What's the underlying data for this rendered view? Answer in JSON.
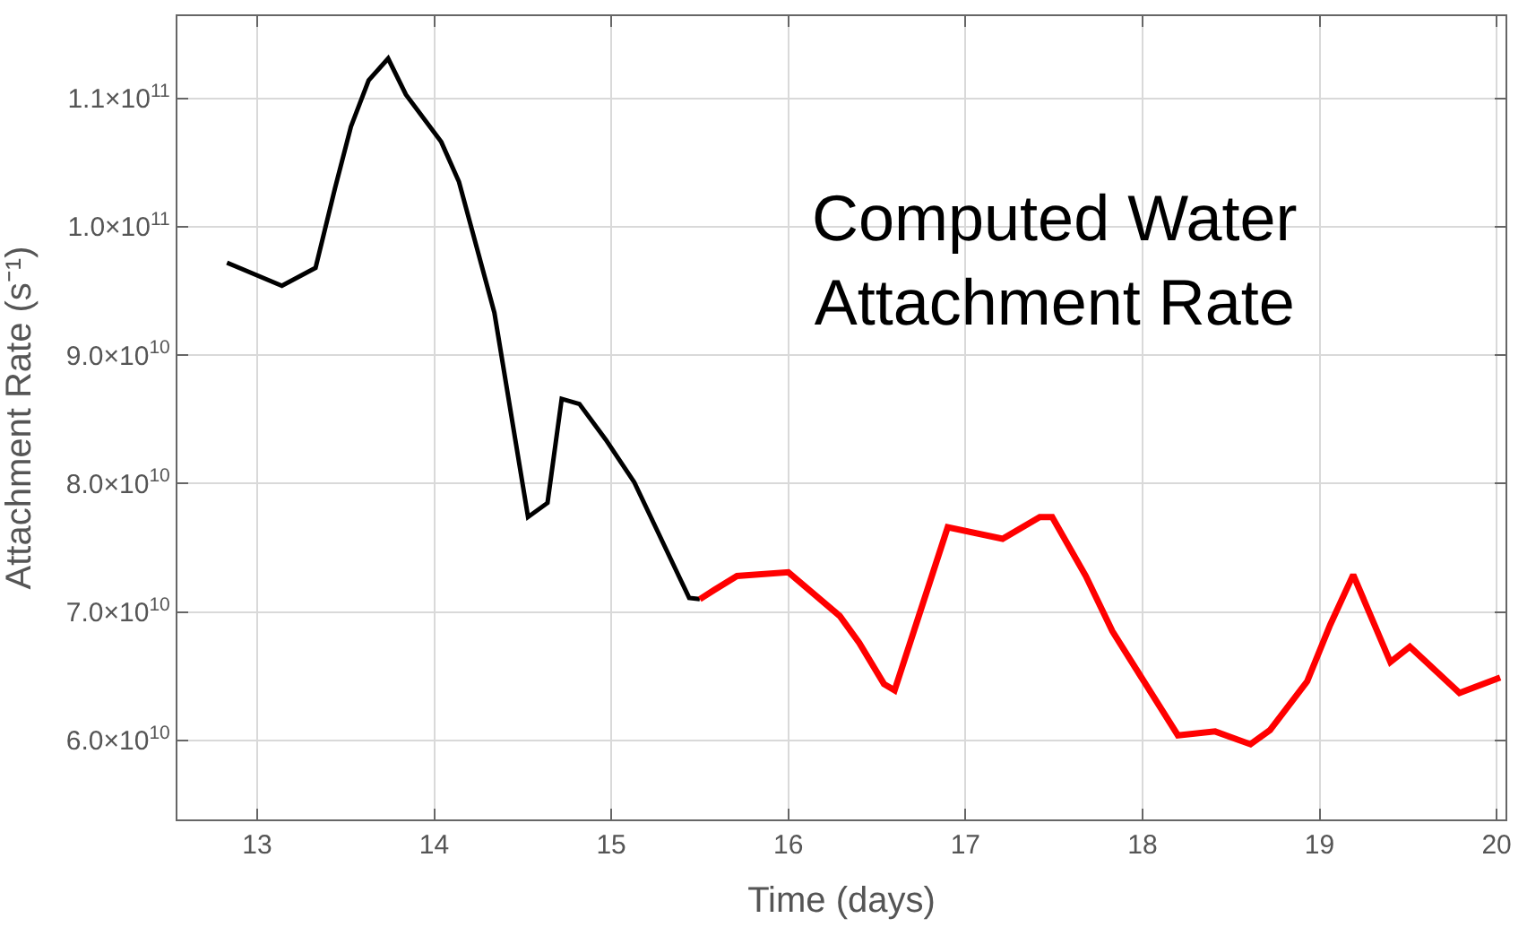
{
  "chart_data": {
    "type": "line",
    "xlabel": "Time (days)",
    "ylabel": "Attachment Rate (s⁻¹)",
    "annotations": [
      "Computed Water\nAttachment Rate"
    ],
    "series": [
      {
        "color": "#000000",
        "x": [
          12.83,
          13.14,
          13.33,
          13.44,
          13.53,
          13.63,
          13.74,
          13.84,
          14.04,
          14.14,
          14.34,
          14.53,
          14.64,
          14.72,
          14.82,
          14.97,
          15.13,
          15.44,
          15.5
        ],
        "values": [
          97200000000.0,
          95400000000.0,
          96800000000.0,
          103000000000.0,
          107800000000.0,
          111400000000.0,
          113100000000.0,
          110300000000.0,
          106600000000.0,
          103500000000.0,
          93300000000.0,
          77400000000.0,
          78500000000.0,
          86600000000.0,
          86200000000.0,
          83400000000.0,
          80100000000.0,
          71100000000.0,
          71000000000.0
        ]
      },
      {
        "color": "#ff0000",
        "x": [
          15.5,
          15.58,
          15.71,
          16.0,
          16.29,
          16.4,
          16.54,
          16.6,
          16.9,
          17.21,
          17.42,
          17.49,
          17.68,
          17.83,
          18.2,
          18.41,
          18.61,
          18.72,
          18.93,
          19.06,
          19.19,
          19.4,
          19.51,
          19.79,
          20.02
        ],
        "values": [
          71000000000.0,
          71700000000.0,
          72800000000.0,
          73100000000.0,
          69700000000.0,
          67600000000.0,
          64400000000.0,
          63900000000.0,
          76600000000.0,
          75700000000.0,
          77400000000.0,
          77400000000.0,
          72800000000.0,
          68500000000.0,
          60400000000.0,
          60700000000.0,
          59700000000.0,
          60800000000.0,
          64600000000.0,
          69000000000.0,
          72900000000.0,
          66100000000.0,
          67300000000.0,
          63700000000.0,
          64900000000.0
        ]
      }
    ],
    "xlim": [
      12.55,
      20.05
    ],
    "xticks": [
      13,
      14,
      15,
      16,
      17,
      18,
      19,
      20
    ],
    "ylim": [
      53850000000.0,
      116400000000.0
    ],
    "yticks": [
      {
        "value": 60000000000.0,
        "label": "6.0×10$^{10}$"
      },
      {
        "value": 70000000000.0,
        "label": "7.0×10$^{10}$"
      },
      {
        "value": 80000000000.0,
        "label": "8.0×10$^{10}$"
      },
      {
        "value": 90000000000.0,
        "label": "9.0×10$^{10}$"
      },
      {
        "value": 100000000000.0,
        "label": "1.0×10$^{11}$"
      },
      {
        "value": 110000000000.0,
        "label": "1.1×10$^{11}$"
      }
    ],
    "grid": true,
    "marker": "none",
    "line_style": "solid"
  }
}
